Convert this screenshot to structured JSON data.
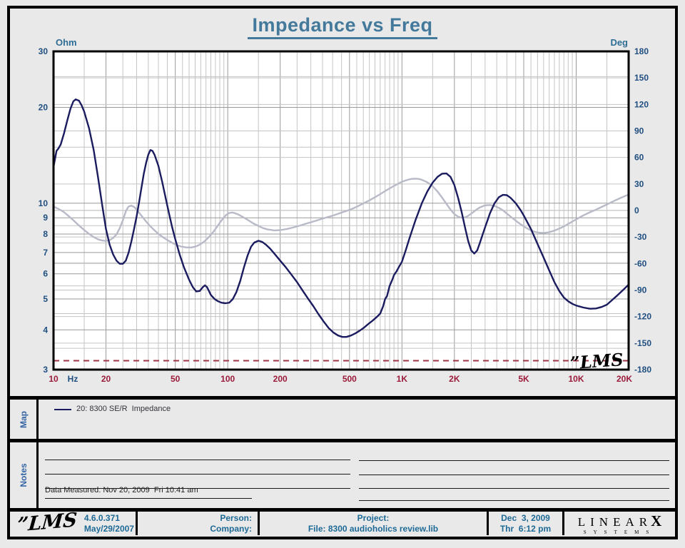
{
  "page": {
    "title": "Impedance vs Freq"
  },
  "chart_data": {
    "type": "line",
    "title": "Impedance vs Freq",
    "x_axis": {
      "scale": "log",
      "unit": "Hz",
      "min": 10,
      "max": 20000,
      "tick_labels": [
        "10",
        "20",
        "50",
        "100",
        "200",
        "500",
        "1K",
        "2K",
        "5K",
        "10K",
        "20K"
      ],
      "tick_values": [
        10,
        20,
        50,
        100,
        200,
        500,
        1000,
        2000,
        5000,
        10000,
        20000
      ]
    },
    "y_left": {
      "label": "Ohm",
      "scale": "log",
      "min": 3,
      "max": 30,
      "ticks": [
        30,
        20,
        10,
        9,
        8,
        7,
        6,
        5,
        4,
        3
      ]
    },
    "y_right": {
      "label": "Deg",
      "scale": "linear",
      "min": -180,
      "max": 180,
      "ticks": [
        180,
        150,
        120,
        90,
        60,
        30,
        0,
        -30,
        -60,
        -90,
        -120,
        -150,
        -180
      ]
    },
    "reference_line": {
      "value_ohm": 3.2,
      "style": "dashed",
      "color": "#a03444"
    },
    "signature": "”LMS",
    "series": [
      {
        "name": "20: 8300 SE/R  Impedance",
        "axis": "left",
        "color": "#1b1b60",
        "width": 2.4,
        "points": [
          [
            10,
            13.0
          ],
          [
            10.4,
            14.6
          ],
          [
            10.7,
            14.9
          ],
          [
            11,
            15.3
          ],
          [
            11.5,
            16.6
          ],
          [
            12,
            18.2
          ],
          [
            12.5,
            19.8
          ],
          [
            13,
            20.9
          ],
          [
            13.4,
            21.2
          ],
          [
            14,
            21.0
          ],
          [
            14.5,
            20.3
          ],
          [
            15,
            19.4
          ],
          [
            16,
            17.2
          ],
          [
            17,
            14.7
          ],
          [
            18,
            12.1
          ],
          [
            19,
            9.9
          ],
          [
            20,
            8.3
          ],
          [
            21,
            7.4
          ],
          [
            22,
            6.9
          ],
          [
            23,
            6.6
          ],
          [
            24,
            6.45
          ],
          [
            25,
            6.45
          ],
          [
            26,
            6.6
          ],
          [
            27,
            7.0
          ],
          [
            28,
            7.6
          ],
          [
            29,
            8.3
          ],
          [
            30,
            9.1
          ],
          [
            31,
            10.1
          ],
          [
            32,
            11.2
          ],
          [
            33,
            12.4
          ],
          [
            34,
            13.4
          ],
          [
            35,
            14.2
          ],
          [
            36,
            14.7
          ],
          [
            37,
            14.6
          ],
          [
            38,
            14.2
          ],
          [
            40,
            13.1
          ],
          [
            42,
            11.7
          ],
          [
            44,
            10.4
          ],
          [
            46,
            9.3
          ],
          [
            48,
            8.4
          ],
          [
            50,
            7.7
          ],
          [
            53,
            6.9
          ],
          [
            56,
            6.3
          ],
          [
            60,
            5.75
          ],
          [
            63,
            5.45
          ],
          [
            66,
            5.28
          ],
          [
            69,
            5.3
          ],
          [
            72,
            5.45
          ],
          [
            74,
            5.52
          ],
          [
            76,
            5.45
          ],
          [
            78,
            5.3
          ],
          [
            80,
            5.15
          ],
          [
            84,
            5.0
          ],
          [
            88,
            4.92
          ],
          [
            92,
            4.87
          ],
          [
            97,
            4.85
          ],
          [
            102,
            4.87
          ],
          [
            107,
            5.0
          ],
          [
            112,
            5.25
          ],
          [
            118,
            5.7
          ],
          [
            124,
            6.3
          ],
          [
            130,
            6.85
          ],
          [
            136,
            7.3
          ],
          [
            142,
            7.52
          ],
          [
            150,
            7.62
          ],
          [
            158,
            7.55
          ],
          [
            166,
            7.4
          ],
          [
            175,
            7.2
          ],
          [
            185,
            6.95
          ],
          [
            200,
            6.6
          ],
          [
            215,
            6.3
          ],
          [
            230,
            6.0
          ],
          [
            250,
            5.65
          ],
          [
            270,
            5.3
          ],
          [
            290,
            5.0
          ],
          [
            310,
            4.75
          ],
          [
            330,
            4.5
          ],
          [
            355,
            4.25
          ],
          [
            380,
            4.05
          ],
          [
            405,
            3.92
          ],
          [
            430,
            3.84
          ],
          [
            455,
            3.8
          ],
          [
            480,
            3.8
          ],
          [
            510,
            3.84
          ],
          [
            540,
            3.9
          ],
          [
            570,
            3.97
          ],
          [
            600,
            4.05
          ],
          [
            640,
            4.17
          ],
          [
            680,
            4.28
          ],
          [
            720,
            4.4
          ],
          [
            750,
            4.5
          ],
          [
            780,
            4.75
          ],
          [
            800,
            5.0
          ],
          [
            820,
            5.1
          ],
          [
            850,
            5.5
          ],
          [
            880,
            5.75
          ],
          [
            900,
            5.95
          ],
          [
            930,
            6.1
          ],
          [
            960,
            6.3
          ],
          [
            1000,
            6.55
          ],
          [
            1050,
            7.1
          ],
          [
            1100,
            7.7
          ],
          [
            1150,
            8.3
          ],
          [
            1200,
            8.9
          ],
          [
            1300,
            10.0
          ],
          [
            1400,
            10.9
          ],
          [
            1500,
            11.6
          ],
          [
            1600,
            12.1
          ],
          [
            1700,
            12.38
          ],
          [
            1800,
            12.4
          ],
          [
            1900,
            12.1
          ],
          [
            2000,
            11.4
          ],
          [
            2100,
            10.4
          ],
          [
            2200,
            9.4
          ],
          [
            2300,
            8.4
          ],
          [
            2400,
            7.6
          ],
          [
            2500,
            7.1
          ],
          [
            2600,
            6.95
          ],
          [
            2700,
            7.1
          ],
          [
            2800,
            7.5
          ],
          [
            2900,
            7.95
          ],
          [
            3000,
            8.4
          ],
          [
            3200,
            9.3
          ],
          [
            3400,
            10.0
          ],
          [
            3600,
            10.45
          ],
          [
            3800,
            10.62
          ],
          [
            4000,
            10.6
          ],
          [
            4200,
            10.4
          ],
          [
            4500,
            10.0
          ],
          [
            4800,
            9.5
          ],
          [
            5000,
            9.15
          ],
          [
            5500,
            8.3
          ],
          [
            6000,
            7.45
          ],
          [
            6500,
            6.75
          ],
          [
            7000,
            6.15
          ],
          [
            7500,
            5.65
          ],
          [
            8000,
            5.3
          ],
          [
            8500,
            5.05
          ],
          [
            9000,
            4.92
          ],
          [
            9500,
            4.83
          ],
          [
            10000,
            4.77
          ],
          [
            11000,
            4.7
          ],
          [
            12000,
            4.66
          ],
          [
            13000,
            4.67
          ],
          [
            14000,
            4.72
          ],
          [
            15000,
            4.8
          ],
          [
            16000,
            4.95
          ],
          [
            17000,
            5.1
          ],
          [
            18000,
            5.25
          ],
          [
            19000,
            5.4
          ],
          [
            20000,
            5.55
          ]
        ]
      },
      {
        "name": "Phase",
        "axis": "right",
        "color": "#b9bac8",
        "width": 2.4,
        "points": [
          [
            10,
            4.5
          ],
          [
            10.5,
            2.5
          ],
          [
            11,
            0.5
          ],
          [
            11.5,
            -2
          ],
          [
            12,
            -5
          ],
          [
            13,
            -11
          ],
          [
            14,
            -17
          ],
          [
            15,
            -22
          ],
          [
            16,
            -26.5
          ],
          [
            17,
            -30
          ],
          [
            18,
            -32.5
          ],
          [
            19,
            -34
          ],
          [
            20,
            -34.5
          ],
          [
            21,
            -33.5
          ],
          [
            22,
            -31
          ],
          [
            23,
            -27
          ],
          [
            24,
            -20
          ],
          [
            25,
            -11
          ],
          [
            25.5,
            -6
          ],
          [
            26,
            -1
          ],
          [
            26.5,
            2
          ],
          [
            27,
            4.5
          ],
          [
            28,
            5.5
          ],
          [
            29,
            4
          ],
          [
            30,
            1
          ],
          [
            31,
            -2.5
          ],
          [
            32,
            -6
          ],
          [
            34,
            -12.5
          ],
          [
            36,
            -18
          ],
          [
            38,
            -22.5
          ],
          [
            40,
            -26.5
          ],
          [
            43,
            -31
          ],
          [
            46,
            -34.5
          ],
          [
            50,
            -38.5
          ],
          [
            54,
            -40.8
          ],
          [
            58,
            -41.8
          ],
          [
            62,
            -41.8
          ],
          [
            66,
            -40.5
          ],
          [
            70,
            -38
          ],
          [
            74,
            -34.5
          ],
          [
            78,
            -30
          ],
          [
            82,
            -25
          ],
          [
            86,
            -19.5
          ],
          [
            90,
            -14
          ],
          [
            94,
            -9
          ],
          [
            98,
            -5
          ],
          [
            102,
            -2.8
          ],
          [
            106,
            -2.3
          ],
          [
            110,
            -3
          ],
          [
            115,
            -4.5
          ],
          [
            120,
            -6.5
          ],
          [
            130,
            -10.5
          ],
          [
            140,
            -14.5
          ],
          [
            150,
            -17.5
          ],
          [
            160,
            -20
          ],
          [
            170,
            -21.5
          ],
          [
            185,
            -22.5
          ],
          [
            200,
            -22.2
          ],
          [
            220,
            -20.8
          ],
          [
            240,
            -19
          ],
          [
            260,
            -17
          ],
          [
            280,
            -15
          ],
          [
            300,
            -13.3
          ],
          [
            330,
            -10.8
          ],
          [
            360,
            -8.5
          ],
          [
            400,
            -5.8
          ],
          [
            440,
            -3
          ],
          [
            480,
            -0.5
          ],
          [
            520,
            2
          ],
          [
            560,
            5
          ],
          [
            600,
            8
          ],
          [
            650,
            11.5
          ],
          [
            700,
            15
          ],
          [
            750,
            18.5
          ],
          [
            800,
            22
          ],
          [
            850,
            25
          ],
          [
            900,
            27.8
          ],
          [
            950,
            30.3
          ],
          [
            1000,
            32.5
          ],
          [
            1050,
            34
          ],
          [
            1100,
            35.2
          ],
          [
            1150,
            35.8
          ],
          [
            1200,
            36
          ],
          [
            1250,
            35.7
          ],
          [
            1300,
            34.8
          ],
          [
            1400,
            31.8
          ],
          [
            1500,
            27.5
          ],
          [
            1600,
            21.5
          ],
          [
            1700,
            14.5
          ],
          [
            1800,
            7.5
          ],
          [
            1900,
            1
          ],
          [
            2000,
            -4
          ],
          [
            2100,
            -7
          ],
          [
            2200,
            -8.2
          ],
          [
            2300,
            -7.8
          ],
          [
            2400,
            -6
          ],
          [
            2500,
            -3.5
          ],
          [
            2600,
            -1
          ],
          [
            2700,
            1.5
          ],
          [
            2800,
            3.5
          ],
          [
            3000,
            5.8
          ],
          [
            3200,
            6.2
          ],
          [
            3400,
            5.2
          ],
          [
            3600,
            3
          ],
          [
            3800,
            0.2
          ],
          [
            4000,
            -3.5
          ],
          [
            4300,
            -8.5
          ],
          [
            4600,
            -13
          ],
          [
            5000,
            -18
          ],
          [
            5400,
            -21.8
          ],
          [
            5800,
            -24.2
          ],
          [
            6200,
            -25.3
          ],
          [
            6600,
            -25.3
          ],
          [
            7000,
            -24.5
          ],
          [
            7500,
            -22.8
          ],
          [
            8000,
            -20.5
          ],
          [
            8500,
            -18
          ],
          [
            9000,
            -15.2
          ],
          [
            9500,
            -12.5
          ],
          [
            10000,
            -10
          ],
          [
            11000,
            -5.5
          ],
          [
            12000,
            -2
          ],
          [
            13000,
            1
          ],
          [
            14000,
            4
          ],
          [
            15000,
            6.8
          ],
          [
            16000,
            9.5
          ],
          [
            17000,
            12
          ],
          [
            18000,
            14.2
          ],
          [
            19000,
            16.2
          ],
          [
            20000,
            18
          ]
        ]
      }
    ],
    "colors": {
      "tick_left_right": "#1f4e80",
      "tick_x": "#9b1b3a",
      "axis_units": "#2e6d94",
      "grid_major": "#9a9a9a",
      "grid_minor": "#c4c4c4",
      "plot_bg": "#ffffff",
      "plot_border": "#000000"
    }
  },
  "map": {
    "label": "Map",
    "legend": {
      "swatch_color": "#1b1b60",
      "text": "20: 8300 SE/R  Impedance"
    }
  },
  "notes": {
    "label": "Notes",
    "measured": "Data Measured: Nov 20, 2009  Fri 10:41 am"
  },
  "footer": {
    "lms_logo": "”LMS",
    "version": "4.6.0.371",
    "version_date": "May/29/2007",
    "person_label": "Person:",
    "company_label": "Company:",
    "project_label": "Project:",
    "file_label": "File: 8300 audioholics review.lib",
    "date": "Dec  3, 2009",
    "time": "Thr  6:12 pm",
    "brand": {
      "linear": "LINEAR",
      "x": "X",
      "systems": "SYSTEMS"
    }
  }
}
